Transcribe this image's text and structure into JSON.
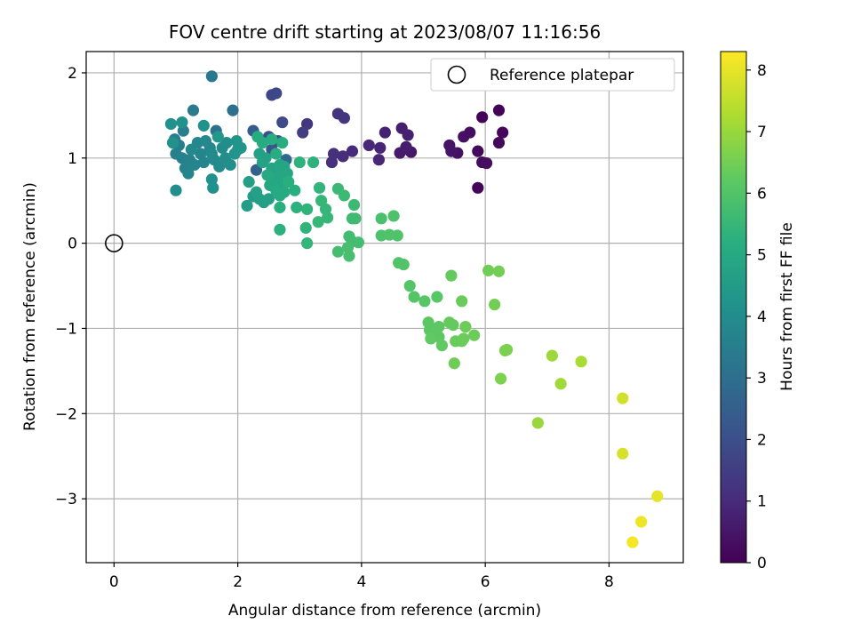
{
  "chart_data": {
    "type": "scatter",
    "title": "FOV centre drift starting at 2023/08/07 11:16:56",
    "xlabel": "Angular distance from reference (arcmin)",
    "ylabel": "Rotation from reference (arcmin)",
    "xlim": [
      -0.45,
      9.2
    ],
    "ylim": [
      -3.75,
      2.25
    ],
    "xticks": [
      0,
      2,
      4,
      6,
      8
    ],
    "yticks": [
      -3,
      -2,
      -1,
      0,
      1,
      2
    ],
    "grid": true,
    "legend": {
      "placement": "top-right",
      "label": "Reference platepar"
    },
    "reference_point": {
      "x": 0,
      "y": 0
    },
    "colorbar": {
      "label": "Hours from first FF file",
      "range": [
        0,
        8.3
      ],
      "ticks": [
        0,
        1,
        2,
        3,
        4,
        5,
        6,
        7,
        8
      ],
      "colormap": "viridis"
    },
    "points": [
      [
        6.22,
        1.56,
        0.05
      ],
      [
        5.95,
        1.48,
        0.1
      ],
      [
        6.28,
        1.3,
        0.15
      ],
      [
        6.22,
        1.18,
        0.2
      ],
      [
        5.95,
        0.95,
        0.25
      ],
      [
        6.02,
        0.94,
        0.3
      ],
      [
        5.88,
        0.65,
        0.1
      ],
      [
        5.88,
        1.08,
        0.2
      ],
      [
        5.75,
        1.3,
        0.3
      ],
      [
        5.65,
        1.25,
        0.35
      ],
      [
        5.55,
        1.06,
        0.4
      ],
      [
        5.42,
        1.15,
        0.45
      ],
      [
        5.45,
        1.08,
        0.5
      ],
      [
        4.8,
        1.07,
        0.55
      ],
      [
        4.62,
        1.06,
        0.6
      ],
      [
        4.72,
        1.13,
        0.65
      ],
      [
        4.65,
        1.35,
        0.7
      ],
      [
        4.75,
        1.27,
        0.75
      ],
      [
        4.38,
        1.3,
        0.8
      ],
      [
        4.3,
        1.12,
        0.85
      ],
      [
        4.28,
        0.98,
        0.9
      ],
      [
        4.12,
        1.15,
        0.95
      ],
      [
        3.85,
        1.08,
        1.0
      ],
      [
        3.7,
        1.02,
        1.05
      ],
      [
        3.52,
        0.95,
        1.1
      ],
      [
        3.55,
        1.05,
        1.15
      ],
      [
        3.62,
        1.52,
        1.2
      ],
      [
        3.72,
        1.47,
        1.25
      ],
      [
        3.12,
        1.4,
        1.35
      ],
      [
        3.05,
        1.3,
        1.45
      ],
      [
        2.55,
        1.74,
        1.7
      ],
      [
        2.62,
        1.76,
        1.8
      ],
      [
        2.72,
        1.42,
        1.9
      ],
      [
        2.5,
        1.25,
        2.0
      ],
      [
        2.65,
        1.2,
        2.1
      ],
      [
        2.55,
        1.1,
        2.2
      ],
      [
        2.25,
        1.32,
        2.4
      ],
      [
        2.3,
        0.86,
        2.6
      ],
      [
        2.78,
        0.98,
        2.8
      ],
      [
        1.92,
        1.56,
        3.0
      ],
      [
        1.65,
        1.32,
        3.1
      ],
      [
        1.58,
        1.96,
        3.3
      ],
      [
        1.28,
        1.56,
        3.4
      ],
      [
        1.12,
        1.32,
        3.5
      ],
      [
        1.05,
        1.15,
        3.5
      ],
      [
        0.98,
        1.22,
        3.55
      ],
      [
        1.0,
        1.05,
        3.6
      ],
      [
        1.1,
        1.0,
        3.6
      ],
      [
        1.22,
        0.98,
        3.65
      ],
      [
        1.15,
        0.88,
        3.65
      ],
      [
        1.3,
        0.92,
        3.7
      ],
      [
        1.2,
        0.82,
        3.7
      ],
      [
        1.4,
        1.05,
        3.75
      ],
      [
        1.45,
        0.95,
        3.75
      ],
      [
        1.55,
        1.12,
        3.8
      ],
      [
        1.35,
        1.18,
        3.8
      ],
      [
        1.48,
        1.2,
        3.85
      ],
      [
        1.25,
        1.1,
        3.85
      ],
      [
        1.58,
        1.05,
        3.9
      ],
      [
        1.62,
        0.98,
        3.9
      ],
      [
        1.7,
        0.9,
        3.95
      ],
      [
        1.75,
        1.12,
        3.95
      ],
      [
        1.8,
        1.0,
        4.0
      ],
      [
        1.88,
        0.92,
        4.0
      ],
      [
        1.82,
        1.18,
        4.05
      ],
      [
        1.0,
        0.62,
        4.05
      ],
      [
        1.6,
        0.65,
        4.1
      ],
      [
        1.58,
        0.75,
        4.1
      ],
      [
        1.45,
        1.38,
        4.15
      ],
      [
        0.92,
        1.4,
        4.15
      ],
      [
        1.1,
        1.42,
        4.2
      ],
      [
        0.95,
        1.18,
        4.2
      ],
      [
        1.95,
        1.05,
        4.25
      ],
      [
        2.0,
        1.1,
        4.25
      ],
      [
        2.05,
        1.12,
        4.3
      ],
      [
        1.98,
        1.2,
        4.3
      ],
      [
        1.68,
        1.25,
        4.35
      ],
      [
        2.25,
        0.55,
        4.5
      ],
      [
        2.15,
        0.44,
        4.55
      ],
      [
        2.35,
        0.52,
        4.6
      ],
      [
        2.42,
        0.48,
        4.65
      ],
      [
        2.18,
        0.72,
        4.65
      ],
      [
        2.3,
        0.6,
        4.7
      ],
      [
        2.5,
        0.52,
        4.7
      ],
      [
        2.35,
        1.05,
        4.7
      ],
      [
        2.4,
        0.95,
        4.75
      ],
      [
        2.45,
        1.0,
        4.75
      ],
      [
        2.55,
        0.88,
        4.8
      ],
      [
        2.6,
        0.8,
        4.8
      ],
      [
        2.68,
        0.92,
        4.85
      ],
      [
        2.72,
        0.85,
        4.85
      ],
      [
        2.75,
        0.9,
        4.85
      ],
      [
        2.8,
        0.82,
        4.9
      ],
      [
        2.65,
        0.78,
        4.9
      ],
      [
        2.7,
        0.7,
        4.9
      ],
      [
        2.58,
        0.72,
        4.95
      ],
      [
        2.52,
        0.68,
        4.95
      ],
      [
        2.62,
        0.62,
        5.0
      ],
      [
        2.75,
        0.6,
        5.0
      ],
      [
        2.68,
        0.56,
        5.0
      ],
      [
        2.48,
        0.8,
        5.05
      ],
      [
        2.4,
        1.18,
        5.1
      ],
      [
        2.32,
        1.25,
        5.1
      ],
      [
        2.55,
        1.22,
        5.15
      ],
      [
        2.72,
        1.18,
        5.15
      ],
      [
        2.62,
        1.05,
        5.15
      ],
      [
        2.82,
        0.72,
        5.2
      ],
      [
        2.92,
        0.62,
        5.2
      ],
      [
        2.68,
        0.42,
        5.2
      ],
      [
        2.95,
        0.42,
        5.25
      ],
      [
        2.68,
        0.16,
        5.25
      ],
      [
        3.0,
        0.95,
        5.3
      ],
      [
        3.22,
        0.95,
        5.3
      ],
      [
        3.12,
        0.4,
        5.35
      ],
      [
        3.1,
        0.18,
        5.35
      ],
      [
        3.12,
        0.0,
        5.4
      ],
      [
        3.32,
        0.65,
        5.4
      ],
      [
        3.35,
        0.5,
        5.45
      ],
      [
        3.42,
        0.4,
        5.45
      ],
      [
        3.45,
        0.3,
        5.5
      ],
      [
        3.3,
        0.25,
        5.5
      ],
      [
        3.62,
        0.64,
        5.55
      ],
      [
        3.72,
        0.56,
        5.6
      ],
      [
        3.88,
        0.45,
        5.6
      ],
      [
        3.85,
        0.29,
        5.65
      ],
      [
        3.9,
        0.29,
        5.65
      ],
      [
        3.8,
        0.08,
        5.7
      ],
      [
        3.85,
        0.02,
        5.7
      ],
      [
        3.95,
        0.01,
        5.75
      ],
      [
        3.62,
        -0.1,
        5.75
      ],
      [
        3.8,
        -0.15,
        5.8
      ],
      [
        3.78,
        -0.05,
        5.8
      ],
      [
        4.32,
        0.29,
        5.85
      ],
      [
        4.52,
        0.32,
        5.9
      ],
      [
        4.32,
        0.09,
        5.9
      ],
      [
        4.45,
        0.1,
        5.95
      ],
      [
        4.58,
        0.09,
        5.95
      ],
      [
        4.6,
        -0.23,
        6.0
      ],
      [
        4.68,
        -0.25,
        6.0
      ],
      [
        4.78,
        -0.5,
        6.05
      ],
      [
        4.85,
        -0.63,
        6.05
      ],
      [
        5.02,
        -0.68,
        6.1
      ],
      [
        5.22,
        -0.63,
        6.1
      ],
      [
        5.08,
        -0.93,
        6.15
      ],
      [
        5.1,
        -1.02,
        6.15
      ],
      [
        5.18,
        -1.05,
        6.2
      ],
      [
        5.25,
        -0.98,
        6.2
      ],
      [
        5.25,
        -1.1,
        6.2
      ],
      [
        5.12,
        -1.12,
        6.25
      ],
      [
        5.3,
        -1.2,
        6.25
      ],
      [
        5.42,
        -0.93,
        6.3
      ],
      [
        5.48,
        -0.96,
        6.3
      ],
      [
        5.45,
        -0.38,
        6.3
      ],
      [
        5.62,
        -0.68,
        6.35
      ],
      [
        5.52,
        -1.15,
        6.35
      ],
      [
        5.62,
        -1.15,
        6.35
      ],
      [
        5.68,
        -0.98,
        6.4
      ],
      [
        5.65,
        -1.12,
        6.4
      ],
      [
        5.82,
        -1.08,
        6.4
      ],
      [
        5.5,
        -1.41,
        6.45
      ],
      [
        6.05,
        -0.32,
        6.45
      ],
      [
        6.22,
        -0.33,
        6.5
      ],
      [
        6.15,
        -0.72,
        6.5
      ],
      [
        6.32,
        -1.26,
        6.6
      ],
      [
        6.35,
        -1.25,
        6.6
      ],
      [
        6.25,
        -1.59,
        6.65
      ],
      [
        6.85,
        -2.11,
        7.0
      ],
      [
        7.08,
        -1.32,
        7.05
      ],
      [
        7.22,
        -1.65,
        7.1
      ],
      [
        7.55,
        -1.39,
        7.2
      ],
      [
        8.22,
        -1.82,
        7.7
      ],
      [
        8.22,
        -2.47,
        7.8
      ],
      [
        8.78,
        -2.97,
        8.0
      ],
      [
        8.52,
        -3.27,
        8.1
      ],
      [
        8.38,
        -3.51,
        8.2
      ]
    ]
  }
}
